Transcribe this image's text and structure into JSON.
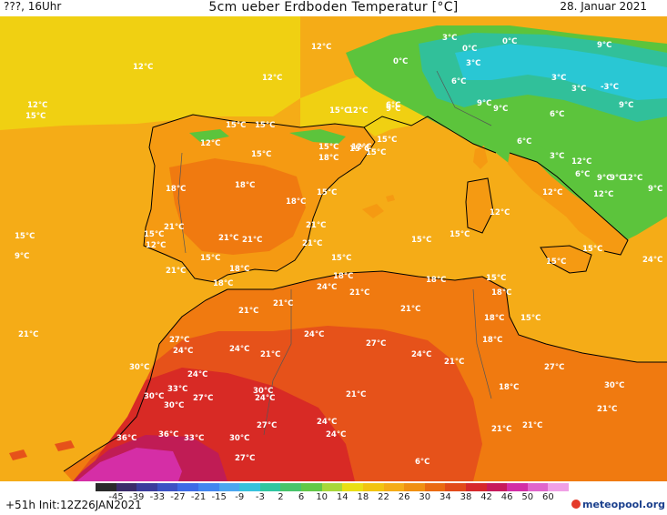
{
  "header": {
    "left": "???, 16Uhr",
    "title": "5cm ueber Erdboden Temperatur [°C]",
    "right": "28. Januar 2021"
  },
  "footer": {
    "forecast": "+51h Init:12Z26JAN2021",
    "logo": "meteopool.org"
  },
  "colors": {
    "sea": "#f5ac17",
    "land_mild": "#f59a12",
    "land_warm": "#f07a10",
    "land_hot": "#e6521a",
    "land_veryhot": "#d82a25",
    "land_extreme": "#c01c55",
    "land_magenta": "#d52ea6",
    "atlantic_cool": "#f0d012",
    "alps_green": "#5cc43c",
    "alps_teal": "#31c09a",
    "alps_cyan": "#29c7d4",
    "coast_line": "#000000",
    "border_line": "#555555"
  },
  "legend": {
    "ticks": [
      "-45",
      "-39",
      "-33",
      "-27",
      "-21",
      "-15",
      "-9",
      "-3",
      "2",
      "6",
      "10",
      "14",
      "18",
      "22",
      "26",
      "30",
      "34",
      "38",
      "42",
      "46",
      "50",
      "60"
    ],
    "colors": [
      "#2a2a2a",
      "#3c2c6a",
      "#3c3c9c",
      "#3c52c4",
      "#3c6ae6",
      "#4186f0",
      "#4ba6f0",
      "#36c2dc",
      "#30c6a0",
      "#48c46a",
      "#62c847",
      "#a8d83a",
      "#eadf15",
      "#f2c411",
      "#f5ac17",
      "#f09012",
      "#ea6a12",
      "#e24a1a",
      "#d6282c",
      "#c71a5c",
      "#d22ea6",
      "#e065cc",
      "#f0a0e6"
    ]
  },
  "labels": [
    {
      "text": "12°C"
    },
    {
      "text": "12°C"
    },
    {
      "text": "12°C"
    },
    {
      "text": "12°C"
    },
    {
      "text": "15°C"
    },
    {
      "text": "15°C"
    },
    {
      "text": "12°C"
    },
    {
      "text": "15°C"
    },
    {
      "text": "12°C"
    },
    {
      "text": "15°C"
    },
    {
      "text": "15°C"
    },
    {
      "text": "15°C"
    },
    {
      "text": "15°C"
    },
    {
      "text": "18°C"
    },
    {
      "text": "12°C"
    },
    {
      "text": "15°C"
    },
    {
      "text": "15°C"
    },
    {
      "text": "9°C"
    },
    {
      "text": "15°C"
    },
    {
      "text": "15°C"
    },
    {
      "text": "18°C"
    },
    {
      "text": "18°C"
    },
    {
      "text": "21°C"
    },
    {
      "text": "18°C"
    },
    {
      "text": "15°C"
    },
    {
      "text": "21°C"
    },
    {
      "text": "21°C"
    },
    {
      "text": "21°C"
    },
    {
      "text": "21°C"
    },
    {
      "text": "21°C"
    },
    {
      "text": "15°C"
    },
    {
      "text": "15°C"
    },
    {
      "text": "15°C"
    },
    {
      "text": "15°C"
    },
    {
      "text": "18°C"
    },
    {
      "text": "18°C"
    },
    {
      "text": "18°C"
    },
    {
      "text": "24°C"
    },
    {
      "text": "21°C"
    },
    {
      "text": "18°C"
    },
    {
      "text": "15°C"
    },
    {
      "text": "18°C"
    },
    {
      "text": "15°C"
    },
    {
      "text": "24°C"
    },
    {
      "text": "21°C"
    },
    {
      "text": "21°C"
    },
    {
      "text": "21°C"
    },
    {
      "text": "18°C"
    },
    {
      "text": "21°C"
    },
    {
      "text": "27°C"
    },
    {
      "text": "24°C"
    },
    {
      "text": "24°C"
    },
    {
      "text": "21°C"
    },
    {
      "text": "24°C"
    },
    {
      "text": "27°C"
    },
    {
      "text": "24°C"
    },
    {
      "text": "21°C"
    },
    {
      "text": "18°C"
    },
    {
      "text": "30°C"
    },
    {
      "text": "24°C"
    },
    {
      "text": "33°C"
    },
    {
      "text": "27°C"
    },
    {
      "text": "30°C"
    },
    {
      "text": "24°C"
    },
    {
      "text": "21°C"
    },
    {
      "text": "18°C"
    },
    {
      "text": "27°C"
    },
    {
      "text": "30°C"
    },
    {
      "text": "30°C"
    },
    {
      "text": "27°C"
    },
    {
      "text": "24°C"
    },
    {
      "text": "36°C"
    },
    {
      "text": "36°C"
    },
    {
      "text": "33°C"
    },
    {
      "text": "30°C"
    },
    {
      "text": "24°C"
    },
    {
      "text": "21°C"
    },
    {
      "text": "21°C"
    },
    {
      "text": "21°C"
    },
    {
      "text": "30°C"
    },
    {
      "text": "27°C"
    },
    {
      "text": "6°C"
    },
    {
      "text": "3°C"
    },
    {
      "text": "0°C"
    },
    {
      "text": "0°C"
    },
    {
      "text": "9°C"
    },
    {
      "text": "0°C"
    },
    {
      "text": "3°C"
    },
    {
      "text": "6°C"
    },
    {
      "text": "3°C"
    },
    {
      "text": "3°C"
    },
    {
      "text": "-3°C"
    },
    {
      "text": "9°C"
    },
    {
      "text": "6°C"
    },
    {
      "text": "9°C"
    },
    {
      "text": "9°C"
    },
    {
      "text": "6°C"
    },
    {
      "text": "6°C"
    },
    {
      "text": "3°C"
    },
    {
      "text": "12°C"
    },
    {
      "text": "6°C"
    },
    {
      "text": "9°C"
    },
    {
      "text": "12°C"
    },
    {
      "text": "9°C"
    },
    {
      "text": "12°C"
    },
    {
      "text": "12°C"
    },
    {
      "text": "15°C"
    },
    {
      "text": "9°C"
    },
    {
      "text": "15°C"
    },
    {
      "text": "12°C"
    },
    {
      "text": "12°C"
    },
    {
      "text": "9°C"
    }
  ]
}
